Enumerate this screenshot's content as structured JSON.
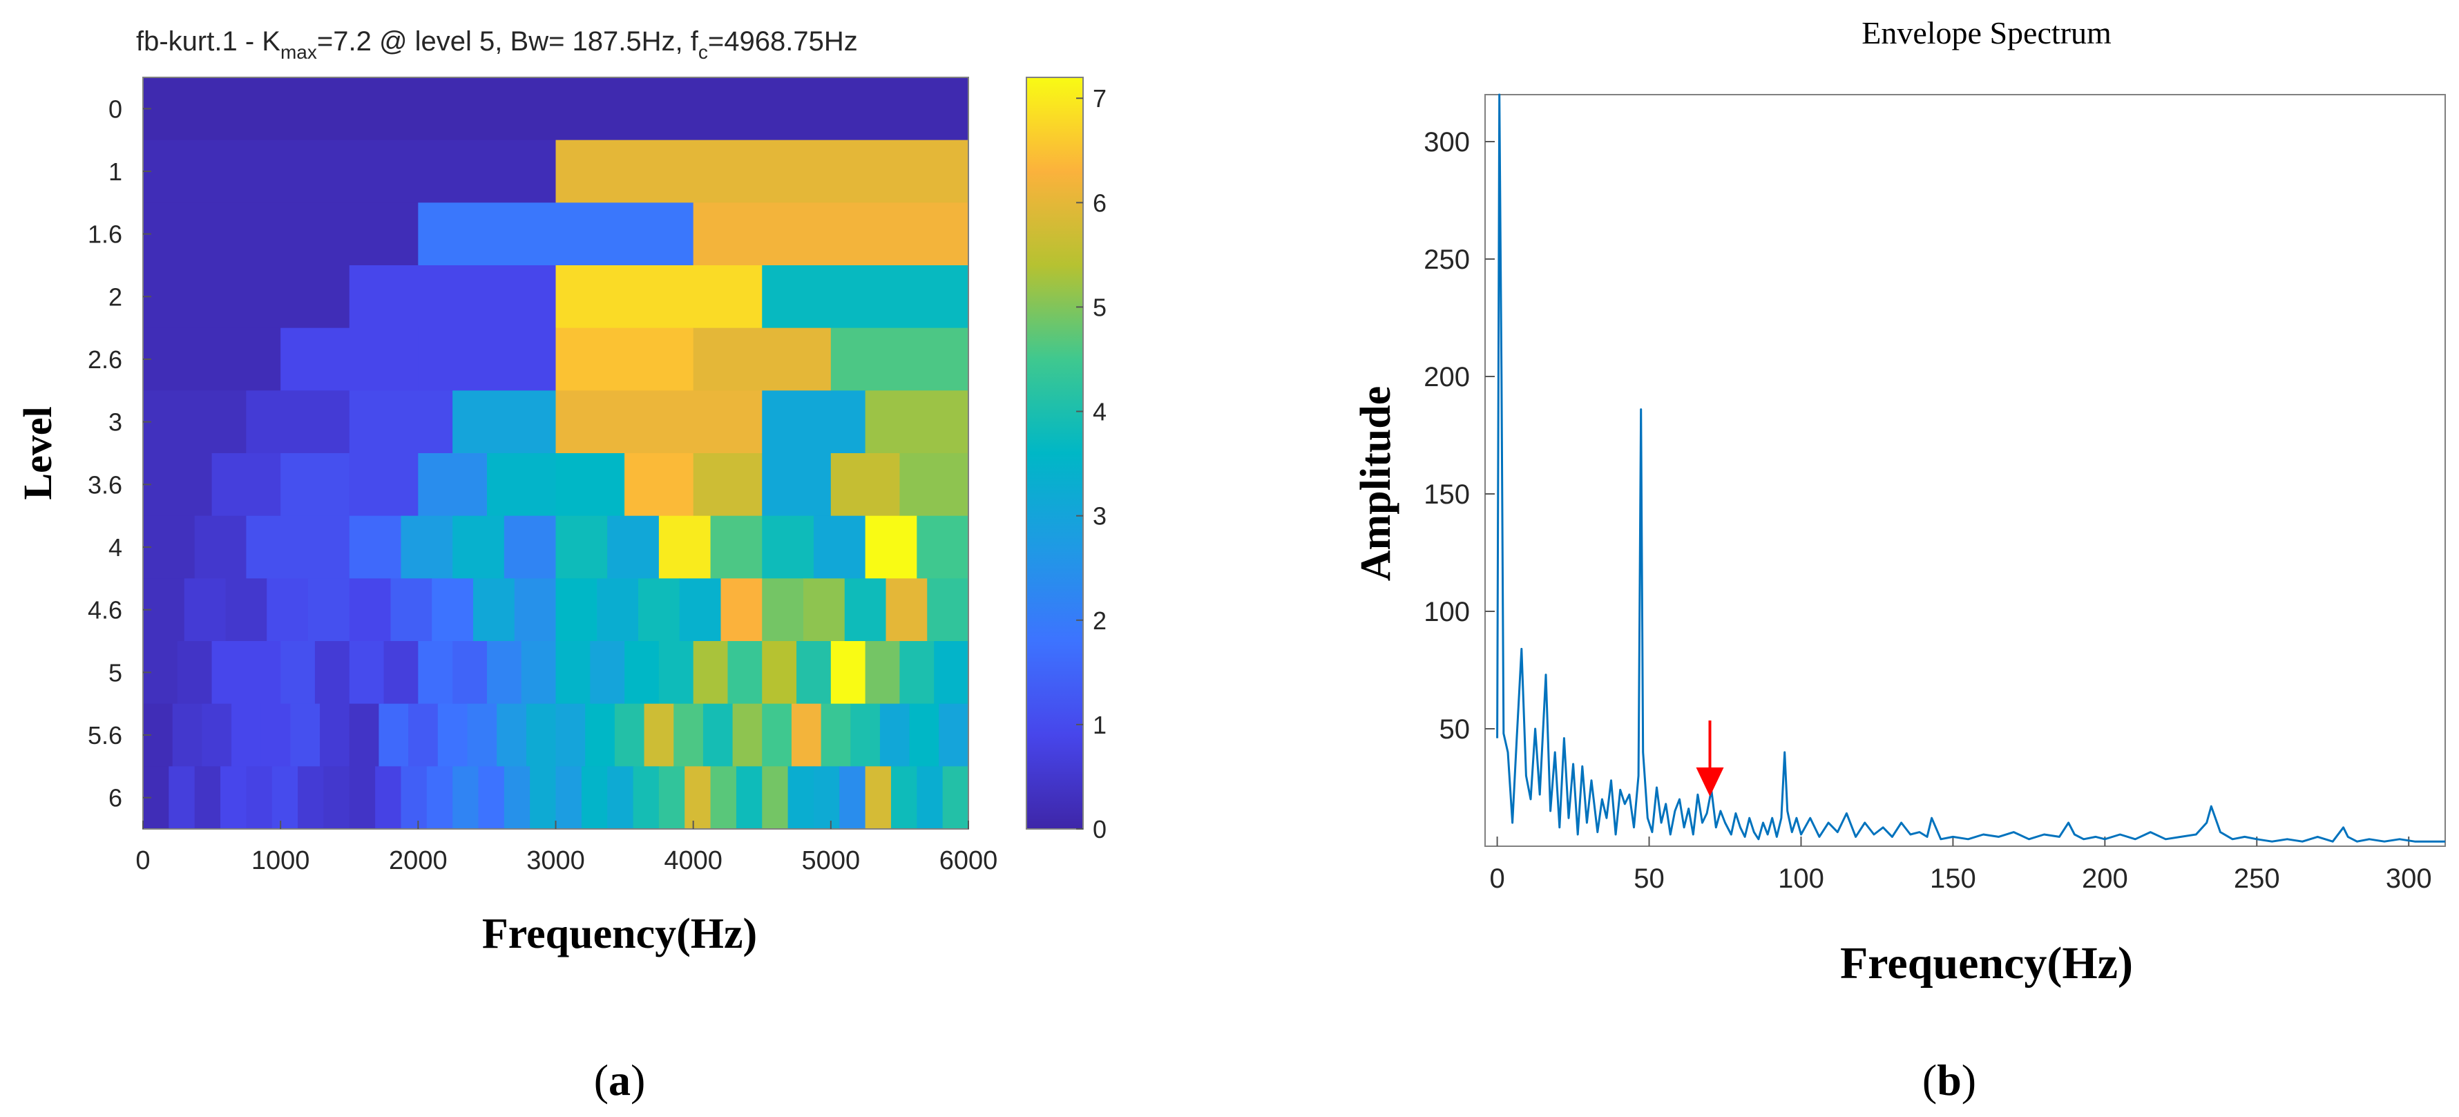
{
  "panels": {
    "a": {
      "label_open": "(",
      "label_letter": "a",
      "label_close": ")"
    },
    "b": {
      "label_open": "(",
      "label_letter": "b",
      "label_close": ")"
    }
  },
  "chart_data": [
    {
      "type": "heatmap",
      "title_prefix": "fb-kurt.1 - K",
      "title_sub": "max",
      "title_mid": "=7.2 @ level 5, Bw= 187.5Hz, f",
      "title_sub2": "c",
      "title_suffix": "=4968.75Hz",
      "xlabel": "Frequency(Hz)",
      "ylabel": "Level",
      "xlim": [
        0,
        6000
      ],
      "x_ticks": [
        0,
        1000,
        2000,
        3000,
        4000,
        5000,
        6000
      ],
      "y_tick_labels": [
        "0",
        "1",
        "1.6",
        "2",
        "2.6",
        "3",
        "3.6",
        "4",
        "4.6",
        "5",
        "5.6",
        "6"
      ],
      "colorbar": {
        "range": [
          0,
          7.2
        ],
        "ticks": [
          0,
          1,
          2,
          3,
          4,
          5,
          6,
          7
        ]
      },
      "rows": [
        {
          "level": "0",
          "values": [
            0.1
          ]
        },
        {
          "level": "1",
          "values": [
            0.2,
            6.0
          ]
        },
        {
          "level": "1.6",
          "values": [
            0.2,
            1.9,
            6.2
          ]
        },
        {
          "level": "2",
          "values": [
            0.2,
            0.9,
            6.8,
            3.7
          ]
        },
        {
          "level": "2.6",
          "values": [
            0.2,
            0.9,
            0.9,
            6.5,
            6.0,
            4.6
          ]
        },
        {
          "level": "3",
          "values": [
            0.3,
            0.6,
            1.0,
            3.0,
            6.1,
            6.1,
            3.1,
            5.2
          ]
        },
        {
          "level": "3.6",
          "values": [
            0.3,
            0.7,
            1.1,
            1.0,
            2.4,
            3.5,
            3.6,
            6.4,
            5.7,
            3.1,
            5.6,
            5.1
          ]
        },
        {
          "level": "4",
          "values": [
            0.3,
            0.5,
            1.1,
            1.1,
            1.6,
            2.8,
            3.4,
            2.2,
            3.8,
            3.1,
            7.0,
            4.6,
            3.8,
            3.1,
            7.2,
            4.5
          ]
        },
        {
          "level": "4.6",
          "values": [
            0.3,
            0.6,
            0.5,
            1.0,
            1.1,
            0.9,
            1.4,
            1.8,
            3.1,
            2.5,
            3.6,
            3.3,
            3.8,
            3.4,
            6.3,
            4.9,
            5.1,
            3.8,
            6.0,
            4.3
          ]
        },
        {
          "level": "5",
          "values": [
            0.3,
            0.4,
            0.9,
            0.9,
            1.1,
            0.6,
            1.0,
            0.7,
            1.7,
            1.5,
            2.2,
            2.6,
            3.5,
            3.0,
            3.6,
            3.8,
            5.3,
            4.4,
            5.4,
            4.1,
            7.2,
            4.9,
            4.0,
            3.5
          ]
        },
        {
          "level": "5.6",
          "values": [
            0.2,
            0.5,
            0.6,
            0.9,
            0.9,
            1.1,
            0.6,
            0.4,
            1.6,
            1.3,
            1.8,
            2.0,
            2.7,
            3.2,
            3.0,
            3.6,
            4.1,
            5.7,
            4.6,
            3.9,
            5.1,
            4.5,
            6.2,
            4.4,
            4.0,
            3.1,
            3.6,
            3.0
          ]
        },
        {
          "level": "6",
          "values": [
            0.2,
            0.7,
            0.4,
            0.9,
            0.8,
            1.0,
            0.6,
            0.5,
            0.4,
            0.8,
            1.4,
            1.7,
            2.2,
            1.8,
            2.5,
            3.2,
            2.8,
            3.5,
            3.2,
            3.9,
            4.3,
            5.8,
            4.7,
            3.8,
            4.9,
            3.3,
            3.2,
            2.4,
            5.8,
            3.8,
            3.3,
            4.1
          ]
        }
      ]
    },
    {
      "type": "line",
      "title": "Envelope Spectrum",
      "xlabel": "Frequency(Hz)",
      "ylabel": "Amplitude",
      "xlim": [
        -4,
        312
      ],
      "ylim": [
        0,
        320
      ],
      "x_ticks": [
        0,
        50,
        100,
        150,
        200,
        250,
        300
      ],
      "y_ticks": [
        50,
        100,
        150,
        200,
        250,
        300
      ],
      "arrow_at": {
        "x": 70,
        "y": 20
      },
      "series": [
        {
          "color": "#0072BD",
          "x": [
            0,
            0.7,
            1.4,
            2.1,
            3.5,
            5,
            6.4,
            8,
            9.5,
            11,
            12.5,
            14,
            16,
            17.5,
            19,
            20.5,
            22,
            23.5,
            25,
            26.5,
            28,
            29.5,
            31,
            33,
            34.5,
            36,
            37.5,
            39,
            40.5,
            42,
            43.5,
            45,
            46.5,
            47.3,
            48,
            49.5,
            51,
            52.5,
            54,
            55.5,
            57,
            58.5,
            60,
            61.5,
            63,
            64.5,
            66,
            67.5,
            69,
            70.5,
            72,
            73.5,
            75,
            77,
            78.5,
            80,
            81.5,
            83,
            84.5,
            86,
            87.5,
            89,
            90.5,
            92,
            93.5,
            94.6,
            95.5,
            97,
            98.5,
            100,
            103,
            106,
            109,
            112,
            115,
            118,
            121,
            124,
            127,
            130,
            133,
            136,
            139,
            141.5,
            143,
            146,
            150,
            155,
            160,
            165,
            170,
            175,
            180,
            185,
            188,
            190,
            193,
            197,
            200,
            205,
            210,
            215,
            220,
            225,
            230,
            233.5,
            235,
            238,
            242,
            246,
            250,
            255,
            260,
            265,
            270,
            275,
            278.5,
            280,
            283,
            287,
            292,
            297,
            302,
            307,
            312
          ],
          "y": [
            46,
            320,
            200,
            48,
            40,
            10,
            45,
            84,
            30,
            20,
            50,
            22,
            73,
            15,
            40,
            8,
            46,
            12,
            35,
            5,
            34,
            10,
            28,
            6,
            20,
            12,
            28,
            5,
            24,
            18,
            22,
            8,
            30,
            186,
            40,
            12,
            6,
            25,
            10,
            18,
            5,
            15,
            20,
            8,
            16,
            5,
            22,
            10,
            14,
            24,
            8,
            15,
            10,
            5,
            14,
            8,
            4,
            12,
            6,
            3,
            10,
            5,
            12,
            4,
            12,
            40,
            15,
            6,
            12,
            5,
            12,
            4,
            10,
            6,
            14,
            4,
            10,
            5,
            8,
            4,
            10,
            5,
            6,
            4,
            12,
            3,
            4,
            3,
            5,
            4,
            6,
            3,
            5,
            4,
            10,
            5,
            3,
            4,
            3,
            5,
            3,
            6,
            3,
            4,
            5,
            10,
            17,
            6,
            3,
            4,
            3,
            2,
            3,
            2,
            4,
            2,
            8,
            4,
            2,
            3,
            2,
            3,
            2,
            2,
            2
          ]
        }
      ]
    }
  ]
}
